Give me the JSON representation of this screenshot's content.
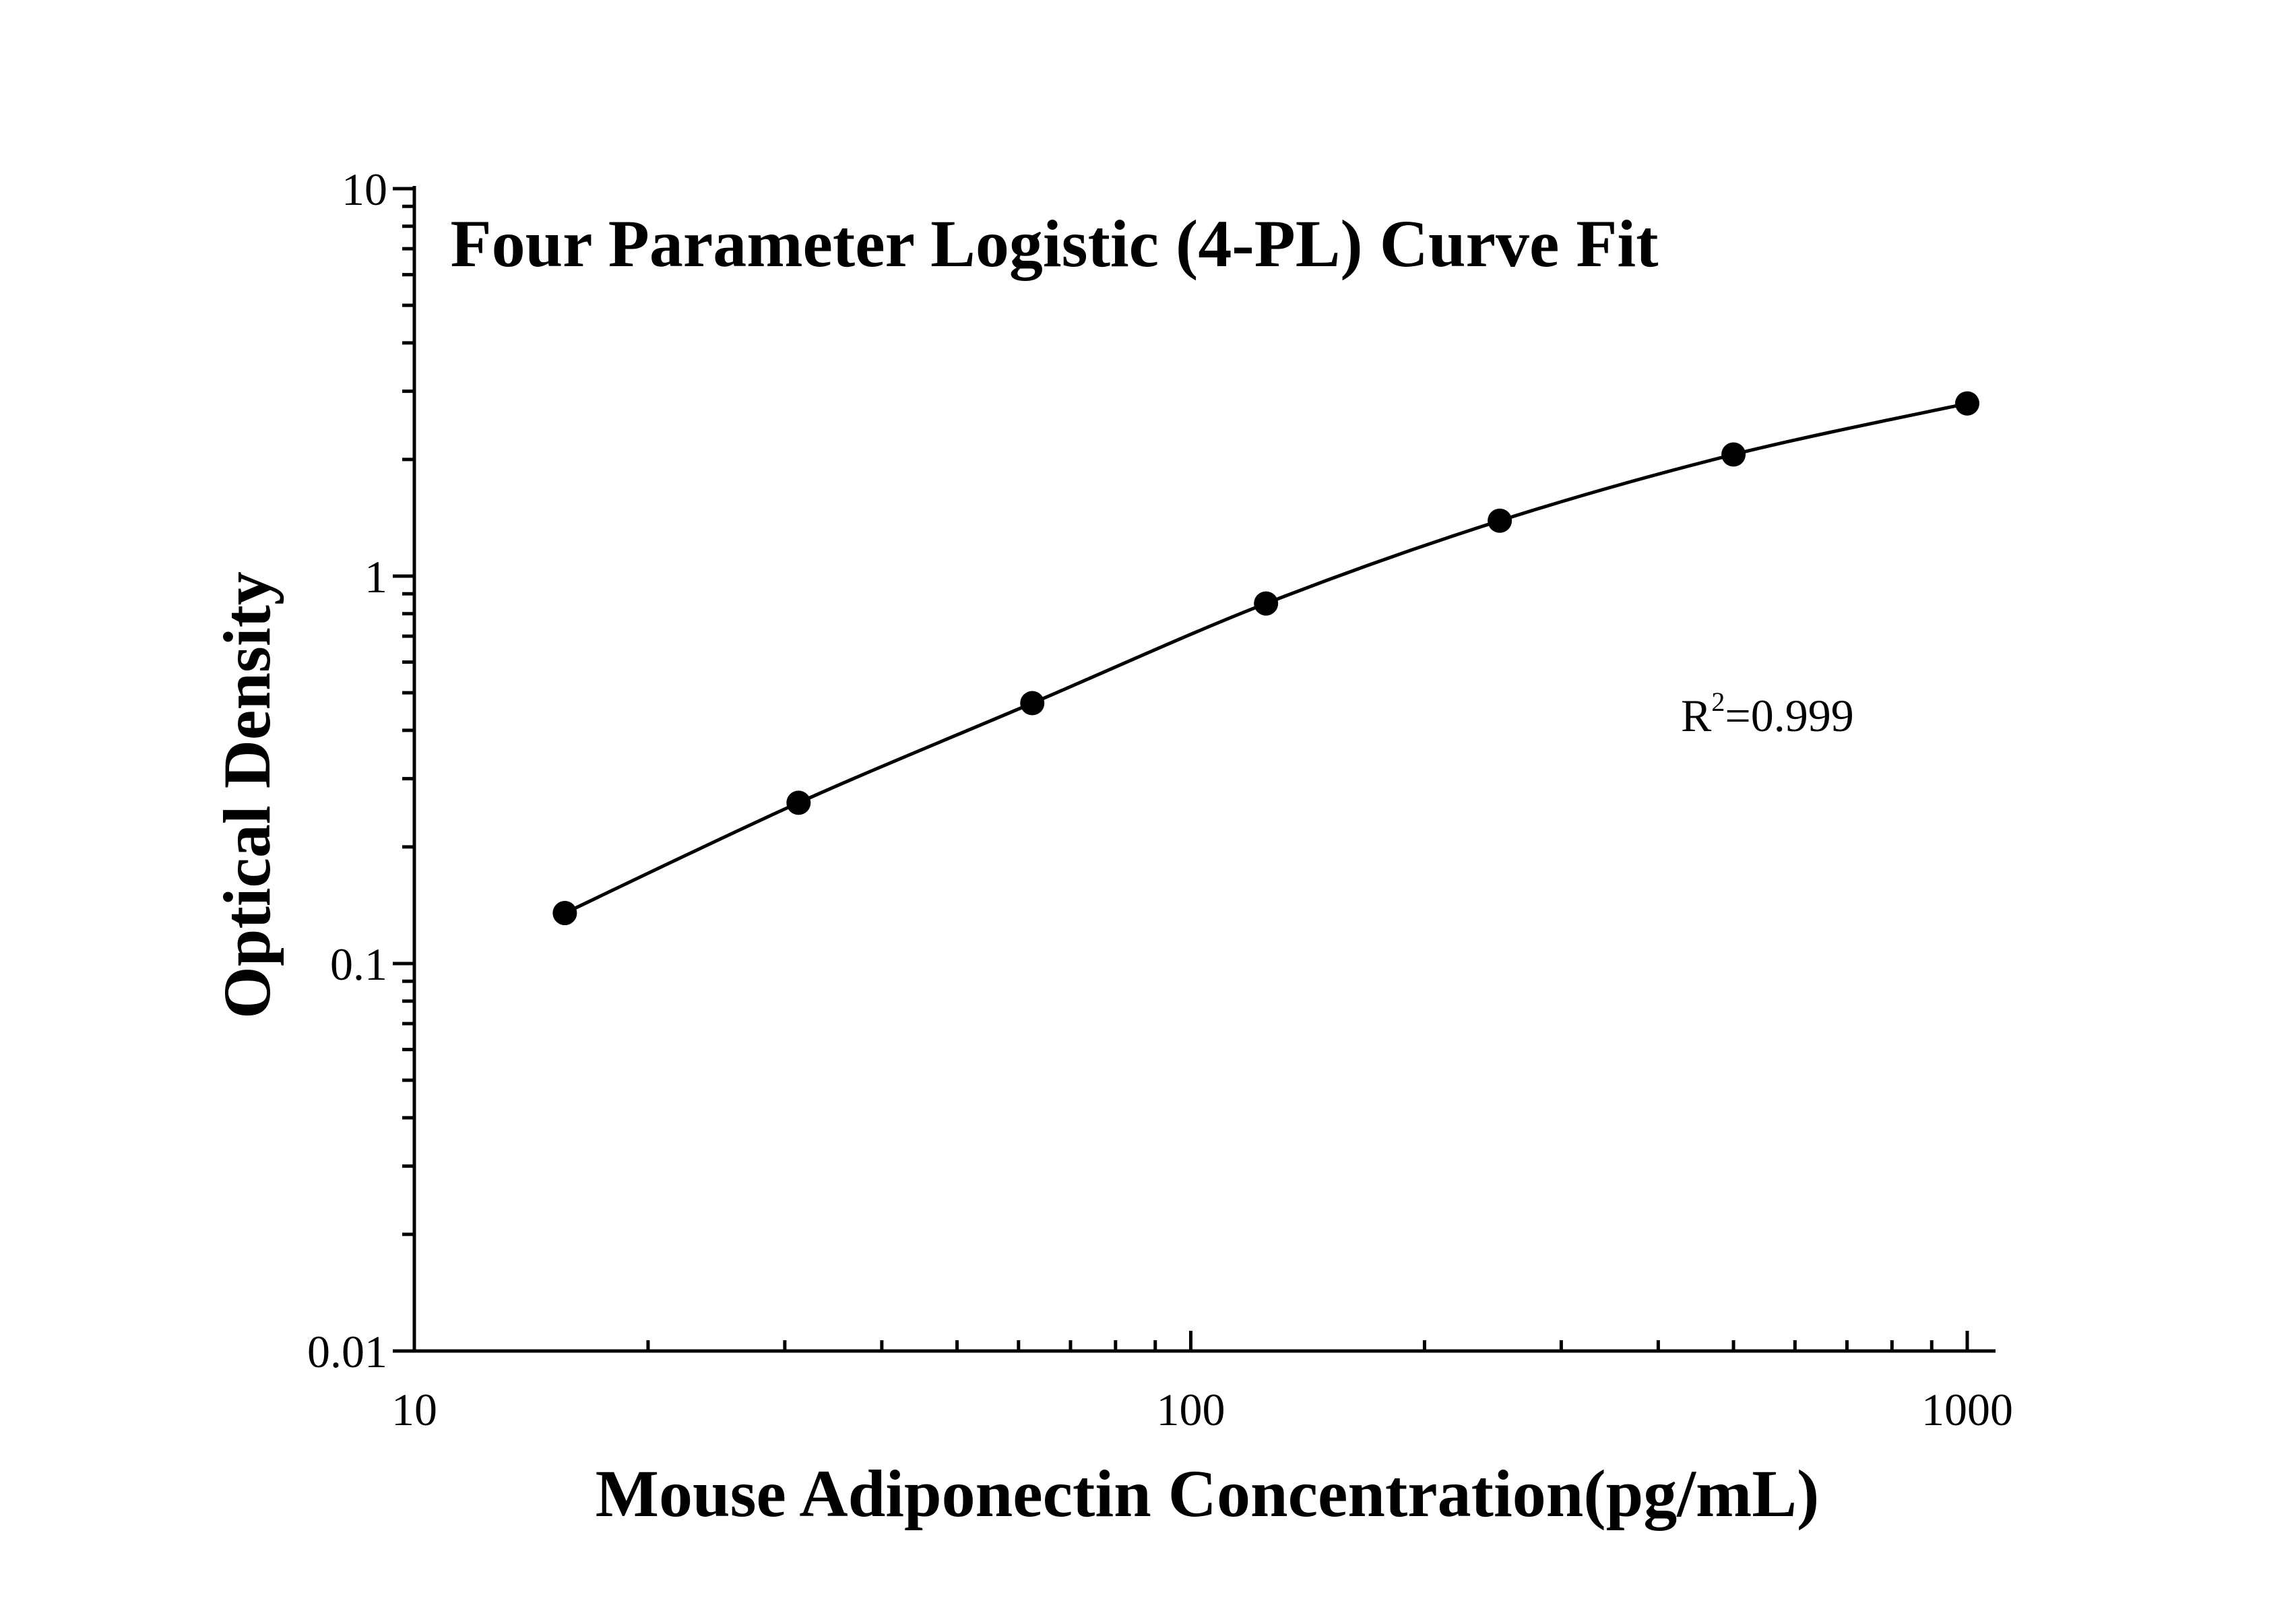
{
  "chart_data": {
    "type": "scatter",
    "title": "Four Parameter Logistic (4-PL) Curve Fit",
    "xlabel": "Mouse Adiponectin Concentration(pg/mL)",
    "ylabel": "Optical Density",
    "x_scale": "log",
    "y_scale": "log",
    "xlim": [
      10,
      1000
    ],
    "ylim": [
      0.01,
      10
    ],
    "x_ticks": [
      "10",
      "100",
      "1000"
    ],
    "y_ticks": [
      "0.01",
      "0.1",
      "1",
      "10"
    ],
    "grid": false,
    "legend": "none",
    "series": [
      {
        "marker": "filled-circle",
        "fit_line": "4-PL",
        "x": [
          15.625,
          31.25,
          62.5,
          125,
          250,
          500,
          1000
        ],
        "y": [
          0.135,
          0.26,
          0.47,
          0.85,
          1.39,
          2.06,
          2.79
        ]
      }
    ],
    "annotation": {
      "base": "R",
      "superscript": "2",
      "value": "=0.999"
    },
    "colors": {
      "line": "#000000",
      "marker": "#000000",
      "background": "#ffffff"
    }
  }
}
